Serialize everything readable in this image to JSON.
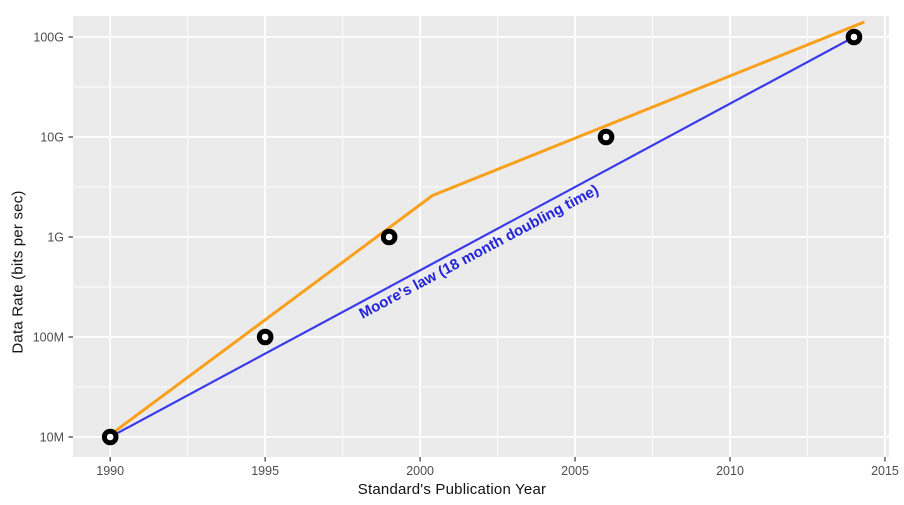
{
  "chart_data": {
    "type": "line",
    "title": "",
    "xlabel": "Standard's Publication Year",
    "ylabel": "Data Rate (bits per sec)",
    "xlim": [
      1988.8,
      2015.13
    ],
    "ylim_log": [
      6.8,
      11.21
    ],
    "grid": true,
    "legend_position": "none",
    "x_ticks": [
      {
        "value": 1990,
        "label": "1990"
      },
      {
        "value": 1995,
        "label": "1995"
      },
      {
        "value": 2000,
        "label": "2000"
      },
      {
        "value": 2005,
        "label": "2005"
      },
      {
        "value": 2010,
        "label": "2010"
      },
      {
        "value": 2015,
        "label": "2015"
      }
    ],
    "x_minor_ticks": [
      1992.5,
      1997.5,
      2002.5,
      2007.5,
      2012.5
    ],
    "y_ticks": [
      {
        "value": 10000000,
        "label": "10M"
      },
      {
        "value": 100000000,
        "label": "100M"
      },
      {
        "value": 1000000000,
        "label": "1G"
      },
      {
        "value": 10000000000,
        "label": "10G"
      },
      {
        "value": 100000000000,
        "label": "100G"
      }
    ],
    "y_minor_ticks_log": [
      7.5,
      8.5,
      9.5,
      10.5
    ],
    "series": [
      {
        "name": "standards-trend",
        "color": "#F9A01C",
        "width": 3,
        "points": [
          [
            1990.0,
            10500000
          ],
          [
            2000.4,
            2600000000
          ],
          [
            2014.3,
            140000000000
          ]
        ]
      },
      {
        "name": "moores-law",
        "color": "#3B3BEC",
        "width": 2.2,
        "points": [
          [
            1990.0,
            10000000
          ],
          [
            2014.0,
            100000000000
          ]
        ]
      }
    ],
    "data_points": {
      "marker": "open-circle",
      "stroke_color": "#000000",
      "fill_color": "#ffffff",
      "points": [
        [
          1990,
          10000000
        ],
        [
          1995,
          100000000
        ],
        [
          1999,
          1000000000
        ],
        [
          2006,
          10000000000
        ],
        [
          2014,
          100000000000
        ]
      ]
    },
    "annotation": {
      "text": "Moore's law (18 month doubling time)",
      "color": "#2323DC",
      "x": 2001.9,
      "y": 700000000,
      "rotation_deg": -28
    },
    "colors": {
      "panel_bg": "#EBEBEB",
      "grid_major": "#FFFFFF",
      "grid_minor": "#FFFFFF",
      "tick_mark": "#333333",
      "tick_label": "#4D4D4D",
      "axis_title": "#111111"
    }
  }
}
